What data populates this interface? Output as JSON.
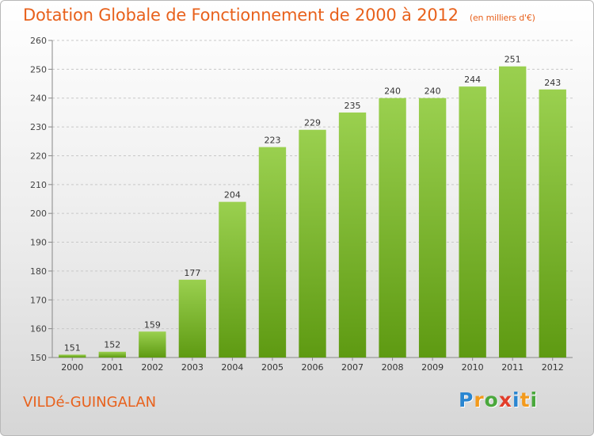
{
  "title": "Dotation Globale de Fonctionnement de 2000 à 2012",
  "subtitle": "(en milliers d'€)",
  "commune": "VILDé-GUINGALAN",
  "logo": {
    "letters": [
      "P",
      "r",
      "o",
      "x",
      "i",
      "t",
      "i"
    ],
    "colors": [
      "#2a86d1",
      "#f39a1c",
      "#4aa83c",
      "#e23d2a",
      "#2a86d1",
      "#f39a1c",
      "#4aa83c"
    ]
  },
  "colors": {
    "title": "#e8611c",
    "bar_light": "#9ad04f",
    "bar_dark": "#5e9a12",
    "grid": "#c8c8c8"
  },
  "chart_data": {
    "type": "bar",
    "categories": [
      "2000",
      "2001",
      "2002",
      "2003",
      "2004",
      "2005",
      "2006",
      "2007",
      "2008",
      "2009",
      "2010",
      "2011",
      "2012"
    ],
    "values": [
      151,
      152,
      159,
      177,
      204,
      223,
      229,
      235,
      240,
      240,
      244,
      251,
      243
    ],
    "ylim": [
      150,
      260
    ],
    "yticks": [
      150,
      160,
      170,
      180,
      190,
      200,
      210,
      220,
      230,
      240,
      250,
      260
    ],
    "grid": true,
    "legend": "none"
  }
}
